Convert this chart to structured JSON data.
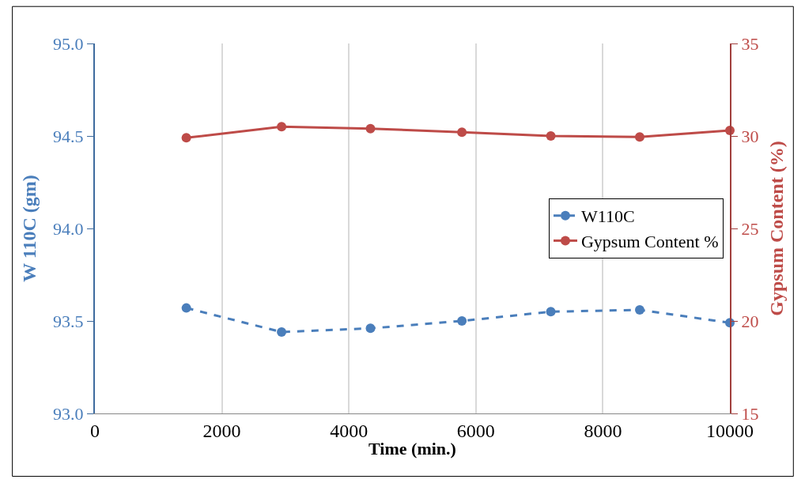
{
  "chart_data": {
    "type": "line",
    "xlabel": "Time (min.)",
    "ylabel": "W 110C (gm)",
    "y2label": "Gypsum Content (%)",
    "x": [
      1440,
      2940,
      4340,
      5780,
      7180,
      8580,
      10000
    ],
    "series": [
      {
        "name": "W110C",
        "color": "#4a7ebb",
        "values": [
          93.57,
          93.44,
          93.46,
          93.5,
          93.55,
          93.56,
          93.49
        ],
        "line_style": "dashed",
        "marker": "circle"
      },
      {
        "name": "Gypsum Content %",
        "color": "#be4b48",
        "values": [
          29.9,
          30.5,
          30.4,
          30.2,
          30.0,
          29.95,
          30.3
        ],
        "axis": "y2",
        "line_style": "solid",
        "marker": "circle"
      }
    ],
    "xlim": [
      0,
      10000
    ],
    "xticks": [
      0,
      2000,
      4000,
      6000,
      8000,
      10000
    ],
    "ylim": [
      93.0,
      95.0
    ],
    "yticks": [
      {
        "value": 93.0,
        "label": "93.0"
      },
      {
        "value": 93.5,
        "label": "93.5"
      },
      {
        "value": 94.0,
        "label": "94.0"
      },
      {
        "value": 94.5,
        "label": "94.5"
      },
      {
        "value": 95.0,
        "label": "95.0"
      }
    ],
    "y2lim": [
      15,
      35
    ],
    "y2ticks": [
      15,
      20,
      25,
      30,
      35
    ],
    "grid": "x",
    "legend": "right"
  }
}
